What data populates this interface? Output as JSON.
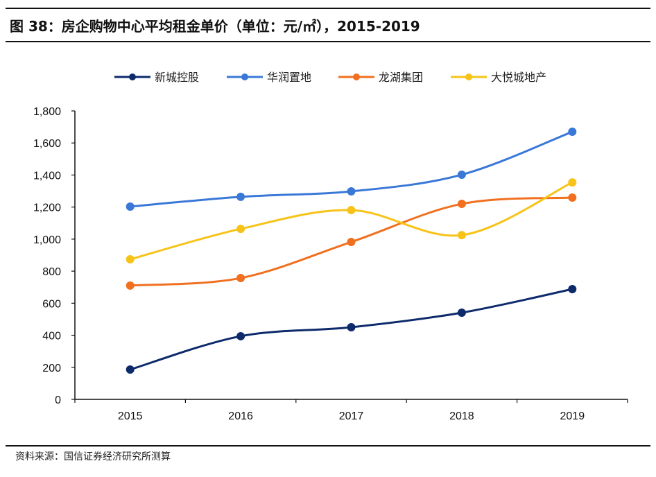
{
  "chart_data": {
    "type": "line",
    "title": "图 38：房企购物中心平均租金单价（单位：元/㎡），2015-2019",
    "source": "资料来源：国信证券经济研究所测算",
    "categories": [
      "2015",
      "2016",
      "2017",
      "2018",
      "2019"
    ],
    "ylim": [
      0,
      1800
    ],
    "yticks": [
      0,
      200,
      400,
      600,
      800,
      1000,
      1200,
      1400,
      1600,
      1800
    ],
    "ytick_labels": [
      "0",
      "200",
      "400",
      "600",
      "800",
      "1,000",
      "1,200",
      "1,400",
      "1,600",
      "1,800"
    ],
    "grid": false,
    "legend": "top",
    "smooth": true,
    "series": [
      {
        "name": "新城控股",
        "color": "#0d2a6b",
        "values": [
          186,
          394,
          450,
          541,
          688
        ]
      },
      {
        "name": "华润置地",
        "color": "#3a78d8",
        "values": [
          1203,
          1264,
          1298,
          1402,
          1670
        ]
      },
      {
        "name": "龙湖集团",
        "color": "#f07020",
        "values": [
          710,
          757,
          982,
          1220,
          1259
        ]
      },
      {
        "name": "大悦城地产",
        "color": "#f7c318",
        "values": [
          874,
          1064,
          1181,
          1025,
          1354
        ]
      }
    ]
  }
}
